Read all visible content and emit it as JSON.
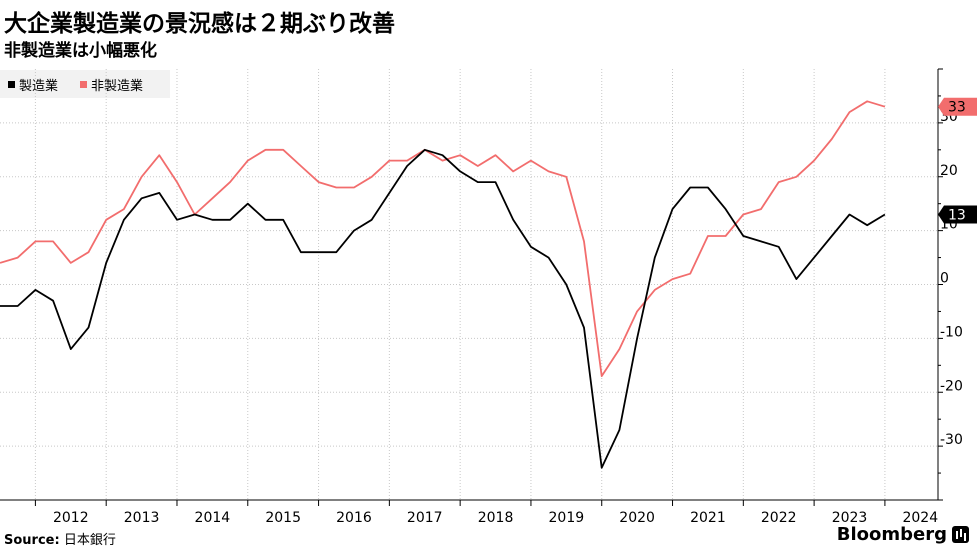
{
  "header": {
    "title": "大企業製造業の景況感は２期ぶり改善",
    "subtitle": "非製造業は小幅悪化"
  },
  "legend": {
    "manufacturing": "製造業",
    "non_manufacturing": "非製造業"
  },
  "colors": {
    "manufacturing": "#000000",
    "non_manufacturing": "#f26d6d",
    "grid": "#c8c8c8"
  },
  "footer": {
    "source_label": "Source:",
    "source_value": "日本銀行",
    "brand": "Bloomberg"
  },
  "chart_data": {
    "type": "line",
    "title": "大企業製造業の景況感は２期ぶり改善",
    "subtitle": "非製造業は小幅悪化",
    "xlabel": "",
    "ylabel": "",
    "x_range": [
      2011.5,
      2024.75
    ],
    "ylim": [
      -40,
      40
    ],
    "yticks": [
      -30,
      -20,
      -10,
      0,
      10,
      20,
      30
    ],
    "ytick_labels": [
      "-30",
      "-20",
      "-10",
      "0",
      "10",
      "20",
      "30"
    ],
    "year_labels": [
      "2012",
      "2013",
      "2014",
      "2015",
      "2016",
      "2017",
      "2018",
      "2019",
      "2020",
      "2021",
      "2022",
      "2023",
      "2024"
    ],
    "grid": true,
    "legend_position": "top-left",
    "x": [
      2011.5,
      2011.75,
      2012.0,
      2012.25,
      2012.5,
      2012.75,
      2013.0,
      2013.25,
      2013.5,
      2013.75,
      2014.0,
      2014.25,
      2014.5,
      2014.75,
      2015.0,
      2015.25,
      2015.5,
      2015.75,
      2016.0,
      2016.25,
      2016.5,
      2016.75,
      2017.0,
      2017.25,
      2017.5,
      2017.75,
      2018.0,
      2018.25,
      2018.5,
      2018.75,
      2019.0,
      2019.25,
      2019.5,
      2019.75,
      2020.0,
      2020.25,
      2020.5,
      2020.75,
      2021.0,
      2021.25,
      2021.5,
      2021.75,
      2022.0,
      2022.25,
      2022.5,
      2022.75,
      2023.0,
      2023.25,
      2023.5,
      2023.75,
      2024.0,
      2024.25
    ],
    "series": [
      {
        "name": "製造業",
        "values": [
          -4,
          -4,
          -1,
          -3,
          -12,
          -8,
          4,
          12,
          16,
          17,
          12,
          13,
          12,
          12,
          15,
          12,
          12,
          6,
          6,
          6,
          10,
          12,
          17,
          22,
          25,
          24,
          21,
          19,
          19,
          12,
          7,
          5,
          0,
          -8,
          -34,
          -27,
          -10,
          5,
          14,
          18,
          18,
          14,
          9,
          8,
          7,
          1,
          5,
          9,
          13,
          11,
          13,
          null
        ],
        "last_label": "13"
      },
      {
        "name": "非製造業",
        "values": [
          4,
          5,
          8,
          8,
          4,
          6,
          12,
          14,
          20,
          24,
          19,
          13,
          16,
          19,
          23,
          25,
          25,
          22,
          19,
          18,
          18,
          20,
          23,
          23,
          25,
          23,
          24,
          22,
          24,
          21,
          23,
          21,
          20,
          8,
          -17,
          -12,
          -5,
          -1,
          1,
          2,
          9,
          9,
          13,
          14,
          19,
          20,
          23,
          27,
          32,
          34,
          33,
          null
        ],
        "last_label": "33"
      }
    ]
  }
}
